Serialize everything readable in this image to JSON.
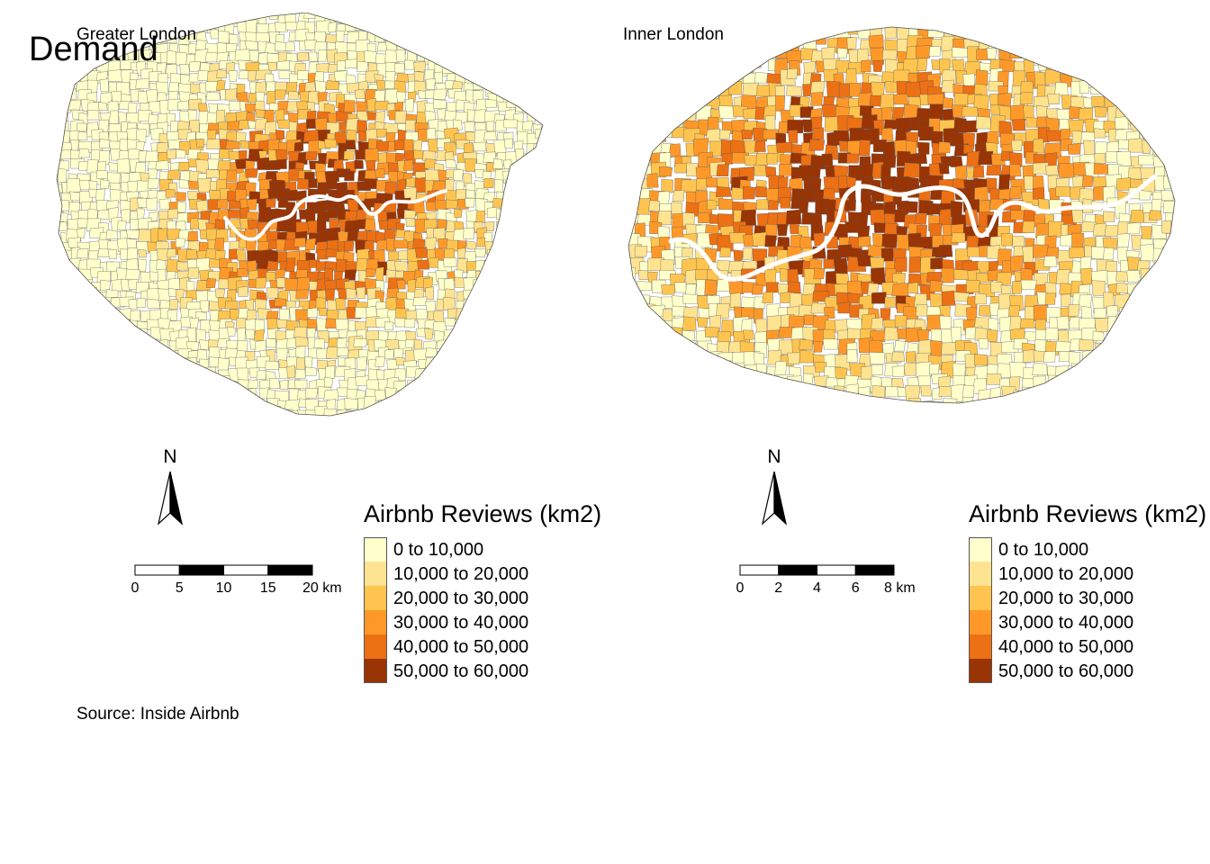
{
  "title": "Demand",
  "source": "Source: Inside Airbnb",
  "colors": {
    "classes": [
      "#ffffcc",
      "#fee391",
      "#fec44f",
      "#fe9929",
      "#ec7014",
      "#993404"
    ],
    "river": "#ffffff",
    "boundary": "#555555"
  },
  "panels": [
    {
      "label": "Greater London",
      "north_label": "N",
      "scale": {
        "ticks": [
          "0",
          "5",
          "10",
          "15",
          "20 km"
        ]
      },
      "legend": {
        "title": "Airbnb Reviews (km2)",
        "classes": [
          "0 to 10,000",
          "10,000 to 20,000",
          "20,000 to 30,000",
          "30,000 to 40,000",
          "40,000 to 50,000",
          "50,000 to 60,000"
        ]
      }
    },
    {
      "label": "Inner London",
      "north_label": "N",
      "scale": {
        "ticks": [
          "0",
          "2",
          "4",
          "6",
          "8 km"
        ]
      },
      "legend": {
        "title": "Airbnb Reviews (km2)",
        "classes": [
          "0 to 10,000",
          "10,000 to 20,000",
          "20,000 to 30,000",
          "30,000 to 40,000",
          "40,000 to 50,000",
          "50,000 to 60,000"
        ]
      }
    }
  ]
}
